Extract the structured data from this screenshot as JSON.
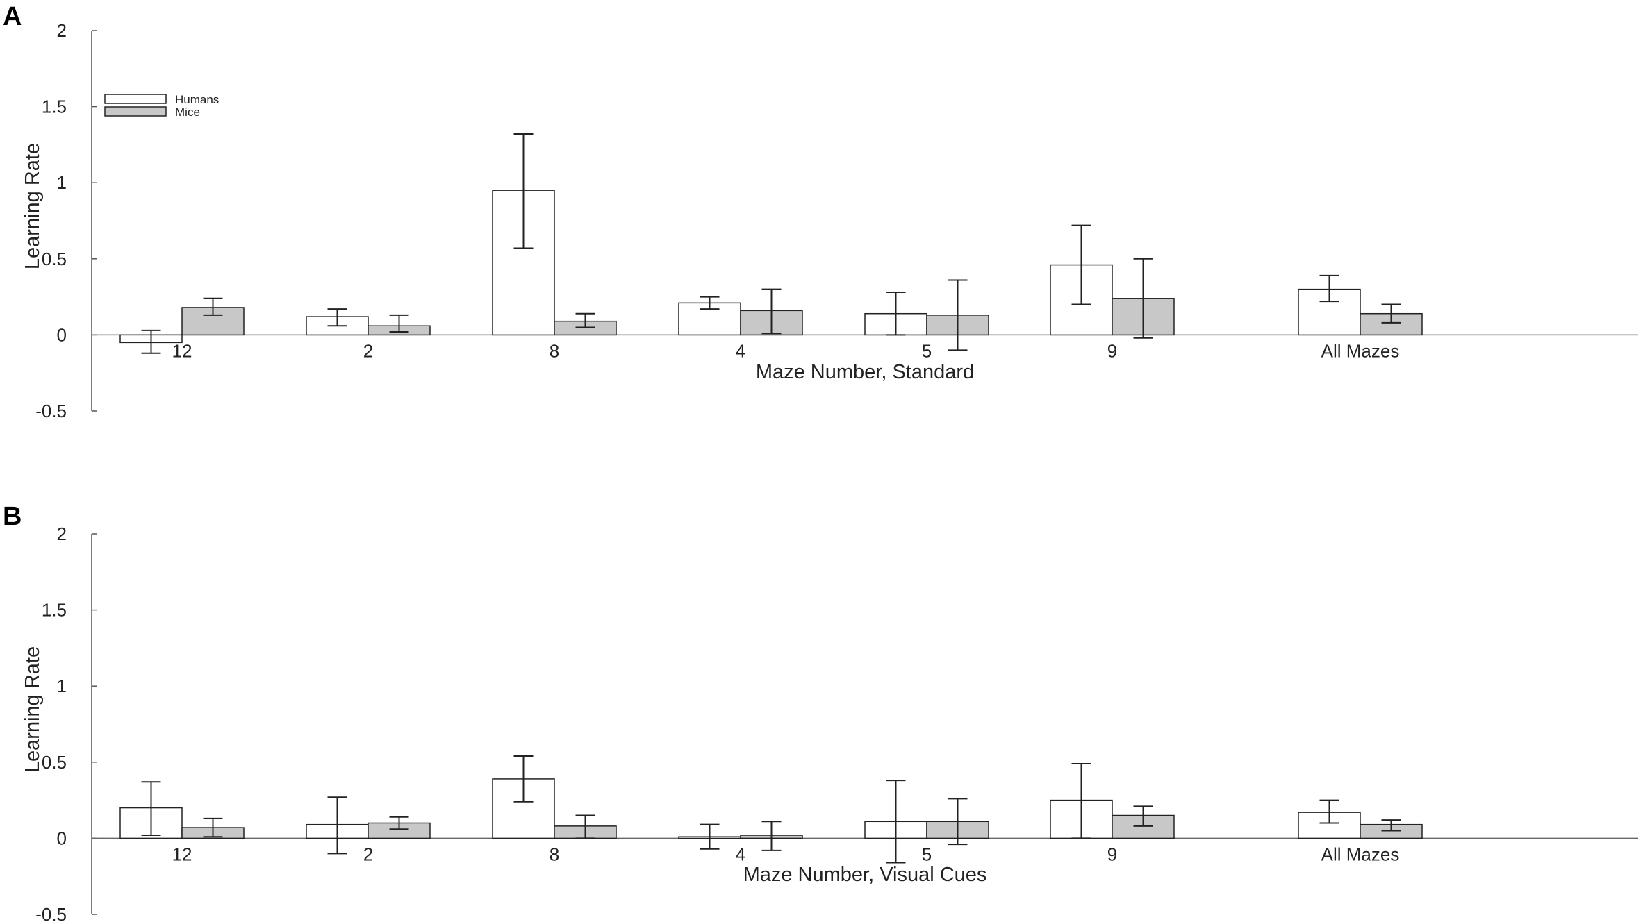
{
  "chart_data": [
    {
      "type": "bar",
      "panel_label": "A",
      "categories": [
        "12",
        "2",
        "8",
        "4",
        "5",
        "9",
        "All Mazes"
      ],
      "series": [
        {
          "name": "Humans",
          "values": [
            -0.05,
            0.12,
            0.95,
            0.21,
            0.14,
            0.46,
            0.3
          ],
          "error_low": [
            -0.12,
            0.06,
            0.57,
            0.17,
            0.0,
            0.2,
            0.22
          ],
          "error_high": [
            0.03,
            0.17,
            1.32,
            0.25,
            0.28,
            0.72,
            0.39
          ],
          "color": "#ffffff"
        },
        {
          "name": "Mice",
          "values": [
            0.18,
            0.06,
            0.09,
            0.16,
            0.13,
            0.24,
            0.14
          ],
          "error_low": [
            0.13,
            0.02,
            0.05,
            0.01,
            -0.1,
            -0.02,
            0.08
          ],
          "error_high": [
            0.24,
            0.13,
            0.14,
            0.3,
            0.36,
            0.5,
            0.2
          ],
          "color": "#c8c8c8"
        }
      ],
      "xlabel": "Maze Number, Standard",
      "ylabel": "Learning Rate",
      "ylim": [
        -0.5,
        2
      ],
      "yticks": [
        "2",
        "1.5",
        "1",
        "0.5",
        "0",
        "-0.5"
      ],
      "ytick_values": [
        2,
        1.5,
        1,
        0.5,
        0,
        -0.5
      ],
      "legend_position": "top-left",
      "grid": false
    },
    {
      "type": "bar",
      "panel_label": "B",
      "categories": [
        "12",
        "2",
        "8",
        "4",
        "5",
        "9",
        "All Mazes"
      ],
      "series": [
        {
          "name": "Humans",
          "values": [
            0.2,
            0.09,
            0.39,
            0.01,
            0.11,
            0.25,
            0.17
          ],
          "error_low": [
            0.02,
            -0.1,
            0.24,
            -0.07,
            -0.16,
            0.0,
            0.1
          ],
          "error_high": [
            0.37,
            0.27,
            0.54,
            0.09,
            0.38,
            0.49,
            0.25
          ],
          "color": "#ffffff"
        },
        {
          "name": "Mice",
          "values": [
            0.07,
            0.1,
            0.08,
            0.02,
            0.11,
            0.15,
            0.09
          ],
          "error_low": [
            0.01,
            0.06,
            0.0,
            -0.08,
            -0.04,
            0.08,
            0.05
          ],
          "error_high": [
            0.13,
            0.14,
            0.15,
            0.11,
            0.26,
            0.21,
            0.12
          ],
          "color": "#c8c8c8"
        }
      ],
      "xlabel": "Maze Number, Visual Cues",
      "ylabel": "Learning Rate",
      "ylim": [
        -0.5,
        2
      ],
      "yticks": [
        "2",
        "1.5",
        "1",
        "0.5",
        "0",
        "-0.5"
      ],
      "ytick_values": [
        2,
        1.5,
        1,
        0.5,
        0,
        -0.5
      ],
      "legend_position": "none",
      "grid": false
    }
  ]
}
